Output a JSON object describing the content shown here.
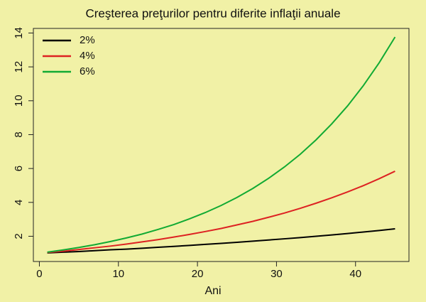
{
  "chart_data": {
    "type": "line",
    "title": "Creşterea preţurilor pentru diferite inflaţii anuale",
    "xlabel": "Ani",
    "x": [
      1,
      3,
      5,
      7,
      9,
      11,
      13,
      15,
      17,
      19,
      21,
      23,
      25,
      27,
      29,
      31,
      33,
      35,
      37,
      39,
      41,
      43,
      45
    ],
    "series": [
      {
        "name": "2%",
        "color": "#000000",
        "values": [
          1.02,
          1.06,
          1.1,
          1.15,
          1.2,
          1.24,
          1.29,
          1.35,
          1.4,
          1.46,
          1.52,
          1.58,
          1.64,
          1.71,
          1.78,
          1.85,
          1.92,
          2.0,
          2.08,
          2.16,
          2.25,
          2.34,
          2.44
        ]
      },
      {
        "name": "4%",
        "color": "#dd2222",
        "values": [
          1.04,
          1.12,
          1.22,
          1.32,
          1.42,
          1.54,
          1.67,
          1.8,
          1.95,
          2.11,
          2.28,
          2.46,
          2.67,
          2.88,
          3.12,
          3.37,
          3.65,
          3.95,
          4.27,
          4.62,
          4.99,
          5.4,
          5.84
        ]
      },
      {
        "name": "6%",
        "color": "#11aa33",
        "values": [
          1.06,
          1.19,
          1.34,
          1.5,
          1.69,
          1.9,
          2.13,
          2.4,
          2.69,
          3.03,
          3.4,
          3.82,
          4.29,
          4.82,
          5.42,
          6.09,
          6.84,
          7.69,
          8.64,
          9.7,
          10.9,
          12.25,
          13.76
        ]
      }
    ],
    "xlim": [
      -0.76,
      46.76
    ],
    "xticks": [
      0,
      10,
      20,
      30,
      40
    ],
    "ylim": [
      0.51,
      14.27
    ],
    "yticks": [
      2,
      4,
      6,
      8,
      10,
      12,
      14
    ],
    "legend": "top-left"
  }
}
